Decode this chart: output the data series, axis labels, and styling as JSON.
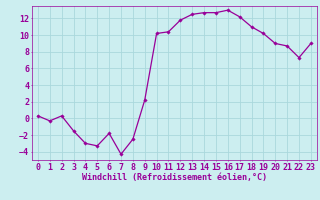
{
  "x": [
    0,
    1,
    2,
    3,
    4,
    5,
    6,
    7,
    8,
    9,
    10,
    11,
    12,
    13,
    14,
    15,
    16,
    17,
    18,
    19,
    20,
    21,
    22,
    23
  ],
  "y": [
    0.3,
    -0.3,
    0.3,
    -1.5,
    -3.0,
    -3.3,
    -1.8,
    -4.3,
    -2.5,
    2.2,
    10.2,
    10.4,
    11.8,
    12.5,
    12.7,
    12.7,
    13.0,
    12.2,
    11.0,
    10.2,
    9.0,
    8.7,
    7.3,
    9.0
  ],
  "line_color": "#990099",
  "marker": "D",
  "marker_size": 1.8,
  "bg_color": "#cceef0",
  "grid_color": "#aad8dc",
  "xlabel": "Windchill (Refroidissement éolien,°C)",
  "ylim": [
    -5,
    13.5
  ],
  "yticks": [
    -4,
    -2,
    0,
    2,
    4,
    6,
    8,
    10,
    12
  ],
  "xticks": [
    0,
    1,
    2,
    3,
    4,
    5,
    6,
    7,
    8,
    9,
    10,
    11,
    12,
    13,
    14,
    15,
    16,
    17,
    18,
    19,
    20,
    21,
    22,
    23
  ],
  "tick_color": "#990099",
  "label_color": "#990099",
  "font_size_xlabel": 6.0,
  "font_size_ticks": 6.0,
  "linewidth": 0.9
}
